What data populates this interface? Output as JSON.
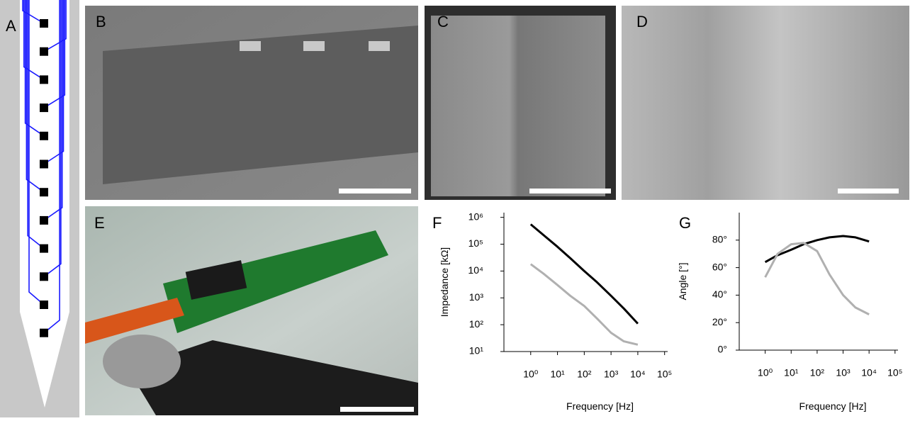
{
  "panel_labels": [
    "A",
    "B",
    "C",
    "D",
    "E",
    "F",
    "G"
  ],
  "chart_data": [
    {
      "type": "line",
      "xlog": true,
      "ylog": true,
      "y_label": "Impedance [kΩ]",
      "x_label": "Frequency [Hz]",
      "x": [
        1,
        3,
        10,
        30,
        100,
        300,
        1000,
        3000,
        10000
      ],
      "xlim": [
        0.1,
        130000
      ],
      "xticks": [
        {
          "value": 1,
          "label": "10⁰"
        },
        {
          "value": 10,
          "label": "10¹"
        },
        {
          "value": 100,
          "label": "10²"
        },
        {
          "value": 1000,
          "label": "10³"
        },
        {
          "value": 10000,
          "label": "10⁴"
        },
        {
          "value": 100000,
          "label": "10⁵"
        }
      ],
      "ylim": [
        10,
        1500000
      ],
      "yticks": [
        {
          "value": 10,
          "label": "10¹"
        },
        {
          "value": 100,
          "label": "10²"
        },
        {
          "value": 1000,
          "label": "10³"
        },
        {
          "value": 10000,
          "label": "10⁴"
        },
        {
          "value": 100000,
          "label": "10⁵"
        },
        {
          "value": 1000000,
          "label": "10⁶"
        }
      ],
      "series": [
        {
          "color": "#000000",
          "values": [
            550000,
            220000,
            80000,
            30000,
            10000,
            3800,
            1200,
            400,
            110
          ]
        },
        {
          "color": "#b0b0b0",
          "values": [
            18000,
            8000,
            3000,
            1200,
            500,
            170,
            50,
            24,
            18
          ]
        }
      ]
    },
    {
      "type": "line",
      "xlog": true,
      "ylog": false,
      "y_label": "Angle [°]",
      "x_label": "Frequency [Hz]",
      "x": [
        1,
        3,
        10,
        30,
        100,
        300,
        1000,
        3000,
        10000
      ],
      "xlim": [
        0.1,
        130000
      ],
      "xticks": [
        {
          "value": 1,
          "label": "10⁰"
        },
        {
          "value": 10,
          "label": "10¹"
        },
        {
          "value": 100,
          "label": "10²"
        },
        {
          "value": 1000,
          "label": "10³"
        },
        {
          "value": 10000,
          "label": "10⁴"
        },
        {
          "value": 100000,
          "label": "10⁵"
        }
      ],
      "ylim": [
        0,
        100
      ],
      "yticks": [
        {
          "value": 0,
          "label": "0°"
        },
        {
          "value": 20,
          "label": "20°"
        },
        {
          "value": 40,
          "label": "40°"
        },
        {
          "value": 60,
          "label": "60°"
        },
        {
          "value": 80,
          "label": "80°"
        }
      ],
      "series": [
        {
          "color": "#000000",
          "values": [
            64,
            69,
            73,
            77,
            80,
            82,
            83,
            82,
            79
          ]
        },
        {
          "color": "#b0b0b0",
          "values": [
            53,
            70,
            77,
            78,
            72,
            55,
            40,
            31,
            26
          ]
        }
      ]
    }
  ]
}
